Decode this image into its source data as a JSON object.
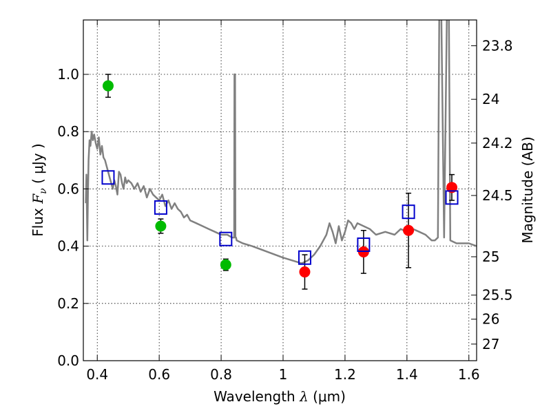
{
  "chart_data": {
    "type": "scatter",
    "xlabel": {
      "pre": "Wavelength  ",
      "symbol": "λ",
      "post": " (μm)"
    },
    "ylabel": {
      "pre": "Flux  ",
      "symbol": "F",
      "sub": "ν",
      "post": "  ( μJy )"
    },
    "y2label": "Magnitude (AB)",
    "xlim": [
      0.355,
      1.625
    ],
    "ylim": [
      0.0,
      1.19
    ],
    "x_ticks": [
      0.4,
      0.6,
      0.8,
      1.0,
      1.2,
      1.4,
      1.6
    ],
    "x_tick_labels": [
      "0.4",
      "0.6",
      "0.8",
      "1",
      "1.2",
      "1.4",
      "1.6"
    ],
    "y_ticks": [
      0.0,
      0.2,
      0.4,
      0.6,
      0.8,
      1.0
    ],
    "y_tick_labels": [
      "0.0",
      "0.2",
      "0.4",
      "0.6",
      "0.8",
      "1.0"
    ],
    "y2_ticks": [
      {
        "label": "23.8",
        "flux": 1.1
      },
      {
        "label": "24",
        "flux": 0.913
      },
      {
        "label": "24.2",
        "flux": 0.76
      },
      {
        "label": "24.5",
        "flux": 0.577
      },
      {
        "label": "25",
        "flux": 0.363
      },
      {
        "label": "25.5",
        "flux": 0.229
      },
      {
        "label": "26",
        "flux": 0.145
      },
      {
        "label": "27",
        "flux": 0.058
      }
    ],
    "grid": true,
    "series": [
      {
        "name": "model SED",
        "kind": "line",
        "color": "#808080",
        "x": [
          0.363,
          0.365,
          0.368,
          0.37,
          0.372,
          0.375,
          0.378,
          0.382,
          0.386,
          0.39,
          0.395,
          0.4,
          0.405,
          0.41,
          0.415,
          0.42,
          0.425,
          0.43,
          0.435,
          0.44,
          0.445,
          0.45,
          0.455,
          0.46,
          0.465,
          0.47,
          0.475,
          0.48,
          0.485,
          0.49,
          0.495,
          0.5,
          0.51,
          0.52,
          0.53,
          0.54,
          0.55,
          0.56,
          0.57,
          0.58,
          0.59,
          0.6,
          0.61,
          0.62,
          0.63,
          0.64,
          0.65,
          0.66,
          0.67,
          0.68,
          0.69,
          0.7,
          0.72,
          0.74,
          0.76,
          0.78,
          0.8,
          0.82,
          0.835,
          0.842,
          0.843,
          0.845,
          0.846,
          0.848,
          0.85,
          0.87,
          0.9,
          0.95,
          1.0,
          1.03,
          1.06,
          1.08,
          1.1,
          1.12,
          1.14,
          1.15,
          1.16,
          1.17,
          1.18,
          1.19,
          1.2,
          1.21,
          1.22,
          1.23,
          1.24,
          1.26,
          1.28,
          1.3,
          1.33,
          1.36,
          1.38,
          1.4,
          1.42,
          1.44,
          1.46,
          1.48,
          1.49,
          1.5,
          1.505,
          1.51,
          1.52,
          1.53,
          1.535,
          1.54,
          1.56,
          1.58,
          1.6,
          1.625
        ],
        "y": [
          0.55,
          0.65,
          0.42,
          0.58,
          0.7,
          0.77,
          0.75,
          0.8,
          0.77,
          0.79,
          0.76,
          0.74,
          0.78,
          0.72,
          0.75,
          0.71,
          0.7,
          0.68,
          0.66,
          0.64,
          0.62,
          0.6,
          0.63,
          0.61,
          0.58,
          0.66,
          0.65,
          0.62,
          0.6,
          0.64,
          0.62,
          0.63,
          0.62,
          0.6,
          0.62,
          0.59,
          0.61,
          0.57,
          0.6,
          0.58,
          0.57,
          0.56,
          0.58,
          0.54,
          0.56,
          0.53,
          0.55,
          0.53,
          0.52,
          0.5,
          0.51,
          0.49,
          0.48,
          0.47,
          0.46,
          0.45,
          0.44,
          0.44,
          0.43,
          0.43,
          1.0,
          1.0,
          0.43,
          0.43,
          0.42,
          0.41,
          0.4,
          0.38,
          0.36,
          0.35,
          0.34,
          0.35,
          0.37,
          0.4,
          0.44,
          0.48,
          0.45,
          0.41,
          0.47,
          0.42,
          0.45,
          0.49,
          0.48,
          0.46,
          0.48,
          0.47,
          0.46,
          0.44,
          0.45,
          0.44,
          0.46,
          0.45,
          0.46,
          0.45,
          0.44,
          0.42,
          0.42,
          0.43,
          1.3,
          1.3,
          0.43,
          1.3,
          1.3,
          0.42,
          0.41,
          0.41,
          0.41,
          0.4
        ]
      },
      {
        "name": "green points",
        "kind": "points",
        "color": "#00bb00",
        "points": [
          {
            "x": 0.435,
            "y": 0.96,
            "err": 0.04
          },
          {
            "x": 0.605,
            "y": 0.47,
            "err": 0.025
          },
          {
            "x": 0.815,
            "y": 0.335,
            "err": 0.02
          }
        ]
      },
      {
        "name": "red points",
        "kind": "points",
        "color": "#ff0000",
        "points": [
          {
            "x": 1.07,
            "y": 0.31,
            "err": 0.06
          },
          {
            "x": 1.26,
            "y": 0.38,
            "err": 0.075
          },
          {
            "x": 1.405,
            "y": 0.455,
            "err": 0.13
          },
          {
            "x": 1.545,
            "y": 0.605,
            "err": 0.045
          }
        ]
      },
      {
        "name": "model photometry",
        "kind": "squares",
        "color": "#0000cc",
        "points": [
          {
            "x": 0.435,
            "y": 0.64
          },
          {
            "x": 0.605,
            "y": 0.535
          },
          {
            "x": 0.815,
            "y": 0.425
          },
          {
            "x": 1.07,
            "y": 0.36
          },
          {
            "x": 1.26,
            "y": 0.405
          },
          {
            "x": 1.405,
            "y": 0.52
          },
          {
            "x": 1.545,
            "y": 0.57
          }
        ]
      }
    ]
  }
}
